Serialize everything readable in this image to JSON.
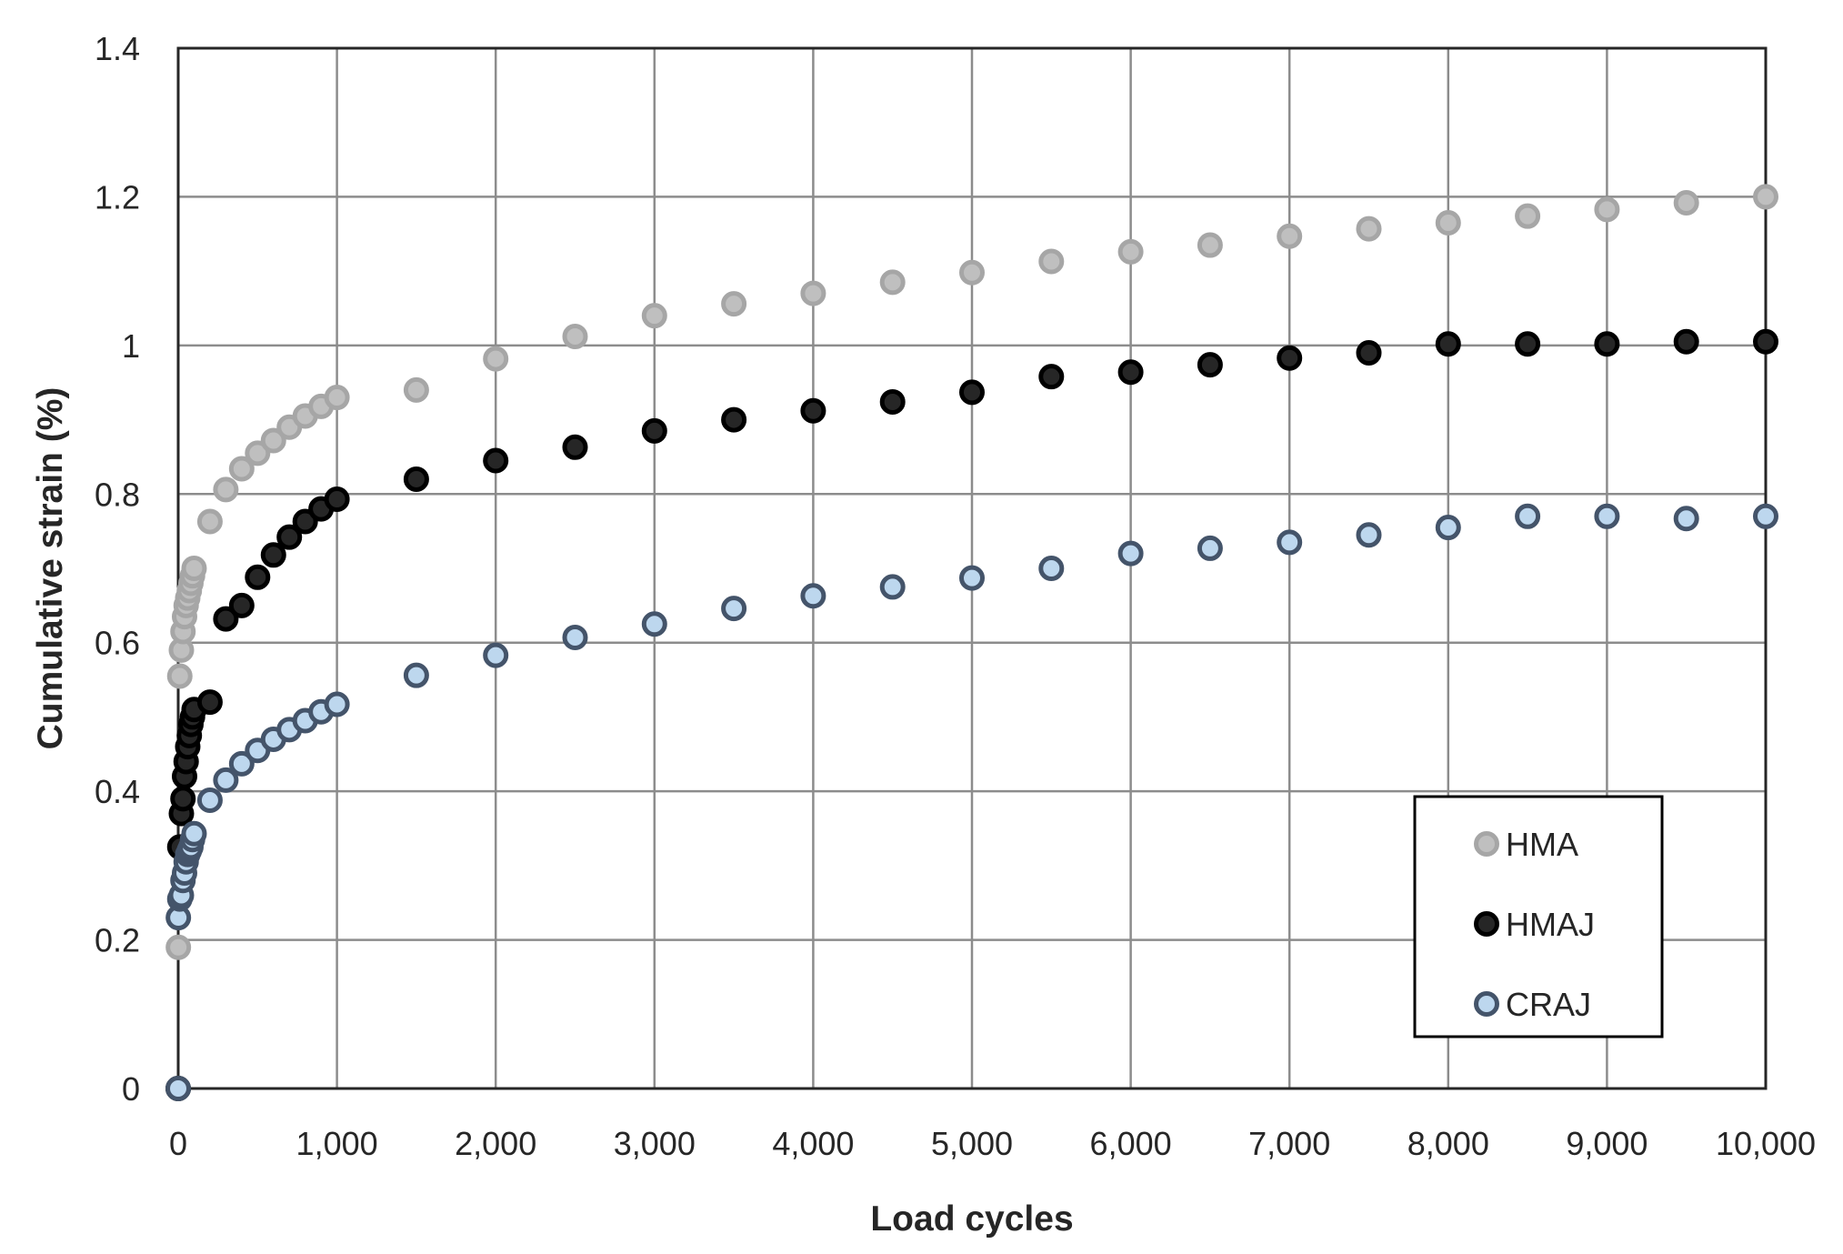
{
  "chart_data": {
    "type": "scatter",
    "title": "",
    "xlabel": "Load cycles",
    "ylabel": "Cumulative strain (%)",
    "xlim": [
      0,
      10000
    ],
    "ylim": [
      0,
      1.4
    ],
    "x_ticks": [
      0,
      1000,
      2000,
      3000,
      4000,
      5000,
      6000,
      7000,
      8000,
      9000,
      10000
    ],
    "x_tick_labels": [
      "0",
      "1,000",
      "2,000",
      "3,000",
      "4,000",
      "5,000",
      "6,000",
      "7,000",
      "8,000",
      "9,000",
      "10,000"
    ],
    "y_ticks": [
      0,
      0.2,
      0.4,
      0.6,
      0.8,
      1.0,
      1.2,
      1.4
    ],
    "y_tick_labels": [
      "0",
      "0.2",
      "0.4",
      "0.6",
      "0.8",
      "1",
      "1.2",
      "1.4"
    ],
    "grid": true,
    "legend_position": "bottom-right",
    "series": [
      {
        "name": "HMA",
        "fill": "#bfbfbf",
        "stroke": "#a6a6a6",
        "x": [
          0,
          1,
          10,
          20,
          30,
          40,
          50,
          60,
          70,
          80,
          90,
          100,
          200,
          300,
          400,
          500,
          600,
          700,
          800,
          900,
          1000,
          1500,
          2000,
          2500,
          3000,
          3500,
          4000,
          4500,
          5000,
          5500,
          6000,
          6500,
          7000,
          7500,
          8000,
          8500,
          9000,
          9500,
          10000
        ],
        "y": [
          0,
          0.19,
          0.555,
          0.59,
          0.615,
          0.635,
          0.65,
          0.66,
          0.67,
          0.68,
          0.69,
          0.7,
          0.763,
          0.806,
          0.834,
          0.855,
          0.872,
          0.89,
          0.905,
          0.918,
          0.93,
          0.94,
          0.982,
          1.012,
          1.04,
          1.056,
          1.07,
          1.085,
          1.098,
          1.113,
          1.126,
          1.135,
          1.147,
          1.157,
          1.165,
          1.174,
          1.183,
          1.192,
          1.2
        ]
      },
      {
        "name": "HMAJ",
        "fill": "#262626",
        "stroke": "#000000",
        "x": [
          0,
          10,
          20,
          30,
          40,
          50,
          60,
          70,
          80,
          90,
          100,
          200,
          300,
          400,
          500,
          600,
          700,
          800,
          900,
          1000,
          1500,
          2000,
          2500,
          3000,
          3500,
          4000,
          4500,
          5000,
          5500,
          6000,
          6500,
          7000,
          7500,
          8000,
          8500,
          9000,
          9500,
          10000
        ],
        "y": [
          0,
          0.325,
          0.37,
          0.39,
          0.42,
          0.44,
          0.46,
          0.475,
          0.49,
          0.5,
          0.51,
          0.52,
          0.632,
          0.65,
          0.688,
          0.718,
          0.742,
          0.763,
          0.78,
          0.793,
          0.82,
          0.845,
          0.863,
          0.885,
          0.9,
          0.912,
          0.924,
          0.937,
          0.958,
          0.964,
          0.974,
          0.983,
          0.99,
          1.002,
          1.002,
          1.002,
          1.005,
          1.005
        ]
      },
      {
        "name": "CRAJ",
        "fill": "#bdd7ee",
        "stroke": "#44546a",
        "x": [
          0,
          1,
          10,
          20,
          30,
          40,
          50,
          60,
          70,
          80,
          90,
          100,
          200,
          300,
          400,
          500,
          600,
          700,
          800,
          900,
          1000,
          1500,
          2000,
          2500,
          3000,
          3500,
          4000,
          4500,
          5000,
          5500,
          6000,
          6500,
          7000,
          7500,
          8000,
          8500,
          9000,
          9500,
          10000
        ],
        "y": [
          0,
          0.23,
          0.255,
          0.26,
          0.28,
          0.29,
          0.305,
          0.315,
          0.32,
          0.325,
          0.335,
          0.343,
          0.388,
          0.415,
          0.437,
          0.455,
          0.47,
          0.483,
          0.495,
          0.507,
          0.517,
          0.556,
          0.583,
          0.607,
          0.625,
          0.646,
          0.663,
          0.675,
          0.687,
          0.7,
          0.72,
          0.727,
          0.735,
          0.745,
          0.755,
          0.77,
          0.77,
          0.767,
          0.77
        ]
      }
    ]
  }
}
